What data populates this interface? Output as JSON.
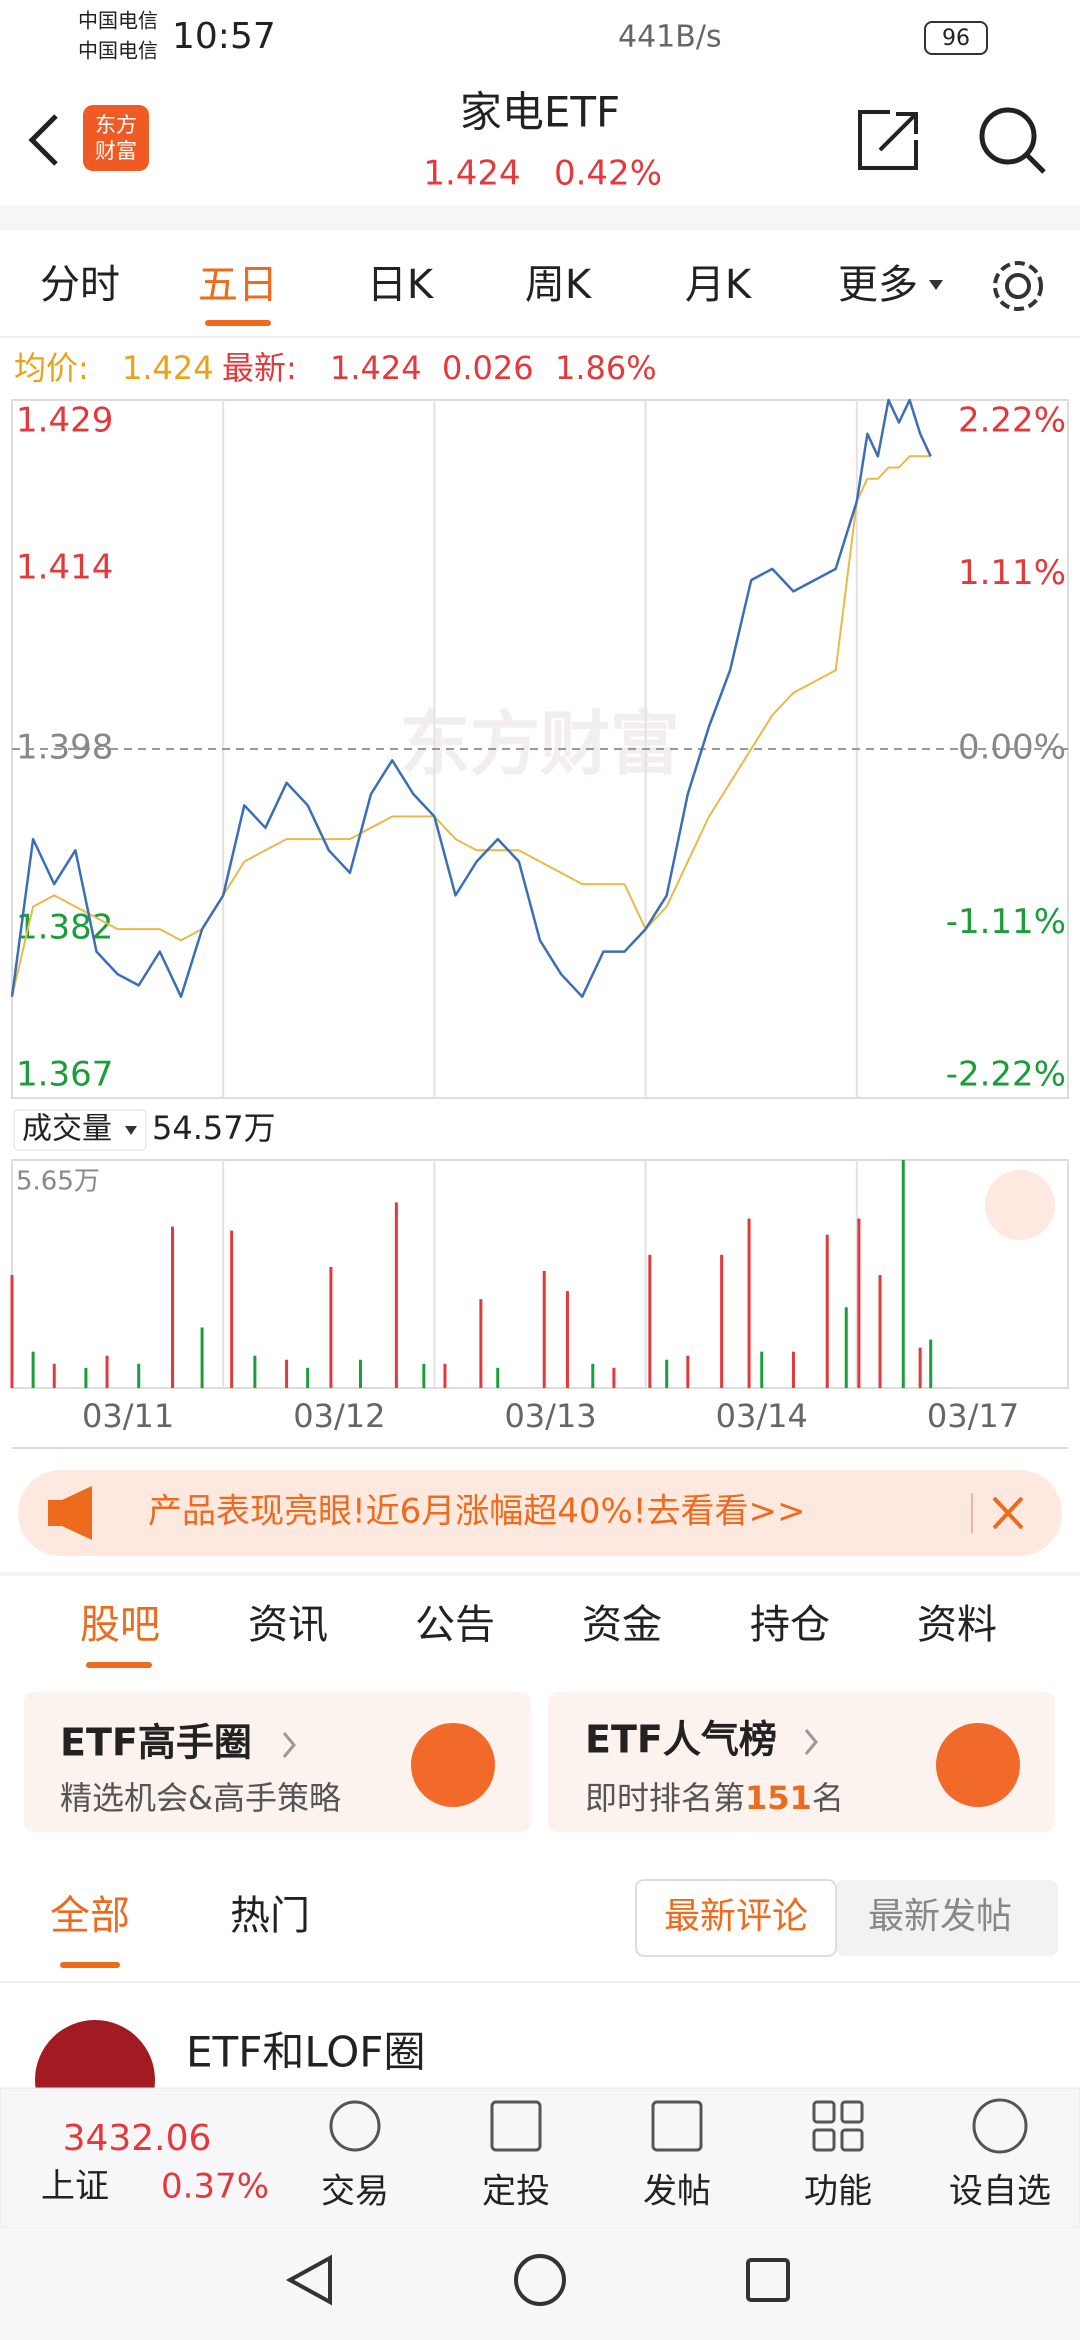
{
  "status_bar": {
    "carrier": [
      "中国电信",
      "中国电信"
    ],
    "time": "10:57",
    "speed": "441B/s",
    "battery": "96"
  },
  "header": {
    "logo": [
      "东方",
      "财富"
    ],
    "title": "家电ETF",
    "price": "1.424",
    "change": "0.42%"
  },
  "period_tabs": [
    "分时",
    "五日",
    "日K",
    "周K",
    "月K",
    "更多"
  ],
  "info_line": {
    "avg_label": "均价:",
    "avg": "1.424",
    "last_label": "最新:",
    "last": "1.424",
    "change": "0.026",
    "change_pct": "1.86%"
  },
  "chart_data": [
    {
      "type": "line",
      "watermark": "东方财富",
      "xlim": [
        0,
        5
      ],
      "ylim": [
        1.367,
        1.429
      ],
      "yticks": [
        1.429,
        1.414,
        1.398,
        1.382,
        1.367
      ],
      "y2lim": [
        -2.22,
        2.22
      ],
      "y2ticks": [
        {
          "value": 2.22,
          "label": "2.22%"
        },
        {
          "value": 1.11,
          "label": "1.11%"
        },
        {
          "value": 0,
          "label": "0.00%"
        },
        {
          "value": -1.11,
          "label": "-1.11%"
        },
        {
          "value": -2.22,
          "label": "-2.22%"
        }
      ],
      "reference_line": 1.398,
      "day_boundaries": [
        1,
        2,
        3,
        4
      ],
      "x": [
        0,
        0.1,
        0.2,
        0.3,
        0.4,
        0.5,
        0.6,
        0.7,
        0.8,
        0.9,
        1,
        1.1,
        1.2,
        1.3,
        1.4,
        1.5,
        1.6,
        1.7,
        1.8,
        1.9,
        2,
        2.1,
        2.2,
        2.3,
        2.4,
        2.5,
        2.6,
        2.7,
        2.8,
        2.9,
        3,
        3.1,
        3.2,
        3.3,
        3.4,
        3.5,
        3.6,
        3.7,
        3.8,
        3.9,
        4,
        4.05,
        4.1,
        4.15,
        4.2,
        4.25,
        4.3,
        4.35
      ],
      "series": [
        {
          "color": "#3a6fb8",
          "values": [
            1.376,
            1.39,
            1.386,
            1.389,
            1.38,
            1.378,
            1.377,
            1.38,
            1.376,
            1.382,
            1.385,
            1.393,
            1.391,
            1.395,
            1.393,
            1.389,
            1.387,
            1.394,
            1.397,
            1.394,
            1.392,
            1.385,
            1.388,
            1.39,
            1.388,
            1.381,
            1.378,
            1.376,
            1.38,
            1.38,
            1.382,
            1.385,
            1.394,
            1.4,
            1.405,
            1.413,
            1.414,
            1.412,
            1.413,
            1.414,
            1.42,
            1.426,
            1.424,
            1.429,
            1.427,
            1.429,
            1.426,
            1.424
          ]
        },
        {
          "color": "#e9b949",
          "values": [
            1.376,
            1.384,
            1.385,
            1.384,
            1.383,
            1.382,
            1.382,
            1.382,
            1.381,
            1.382,
            1.385,
            1.388,
            1.389,
            1.39,
            1.39,
            1.39,
            1.39,
            1.391,
            1.392,
            1.392,
            1.392,
            1.39,
            1.389,
            1.389,
            1.389,
            1.388,
            1.387,
            1.386,
            1.386,
            1.386,
            1.382,
            1.384,
            1.388,
            1.392,
            1.395,
            1.398,
            1.401,
            1.403,
            1.404,
            1.405,
            1.42,
            1.422,
            1.422,
            1.423,
            1.423,
            1.424,
            1.424,
            1.424
          ]
        }
      ]
    },
    {
      "type": "bar",
      "title": "成交量",
      "subtitle": "54.57万",
      "xlim": [
        0,
        5
      ],
      "ylim": [
        0,
        5.65
      ],
      "yticks": [
        {
          "value": 5.65,
          "label": "5.65万"
        }
      ],
      "day_boundaries": [
        1,
        2,
        3,
        4
      ],
      "xticks": [
        {
          "value": 0.55,
          "label": "03/11"
        },
        {
          "value": 1.55,
          "label": "03/12"
        },
        {
          "value": 2.55,
          "label": "03/13"
        },
        {
          "value": 3.55,
          "label": "03/14"
        },
        {
          "value": 4.55,
          "label": "03/17"
        }
      ],
      "series": [
        {
          "color": "#e4393c",
          "x": [
            0.0,
            0.2,
            0.45,
            0.76,
            1.04,
            1.3,
            1.51,
            1.82,
            2.05,
            2.22,
            2.52,
            2.63,
            2.85,
            3.02,
            3.2,
            3.36,
            3.49,
            3.7,
            3.86,
            4.01,
            4.11,
            4.3
          ],
          "values": [
            2.8,
            0.6,
            0.8,
            4.0,
            3.9,
            0.7,
            3.0,
            4.6,
            0.6,
            2.2,
            2.9,
            2.4,
            0.5,
            3.3,
            0.8,
            3.3,
            4.2,
            0.9,
            3.8,
            4.2,
            2.8,
            1.0
          ]
        },
        {
          "color": "#1a9e3a",
          "x": [
            0.1,
            0.35,
            0.6,
            0.9,
            1.15,
            1.4,
            1.65,
            1.95,
            2.3,
            2.75,
            3.1,
            3.55,
            3.95,
            4.22,
            4.35
          ],
          "values": [
            0.9,
            0.5,
            0.6,
            1.5,
            0.8,
            0.5,
            0.7,
            0.6,
            0.5,
            0.6,
            0.7,
            0.9,
            2.0,
            5.65,
            1.2
          ]
        }
      ]
    }
  ],
  "banner": "产品表现亮眼!近6月涨幅超40%!去看看>>",
  "content_tabs": [
    "股吧",
    "资讯",
    "公告",
    "资金",
    "持仓",
    "资料"
  ],
  "cards": [
    {
      "title": "ETF高手圈",
      "subtitle": "精选机会&高手策略"
    },
    {
      "title": "ETF人气榜",
      "subtitle_parts": [
        "即时排名第",
        "151",
        "名"
      ]
    }
  ],
  "feed_tabs": [
    "全部",
    "热门"
  ],
  "sort_buttons": [
    "最新评论",
    "最新发帖"
  ],
  "post": {
    "title": "ETF和LOF圈"
  },
  "bottom_nav": {
    "index": {
      "value": "3432.06",
      "name": "上证",
      "change": "0.37%"
    },
    "items": [
      "交易",
      "定投",
      "发帖",
      "功能",
      "设自选"
    ]
  }
}
